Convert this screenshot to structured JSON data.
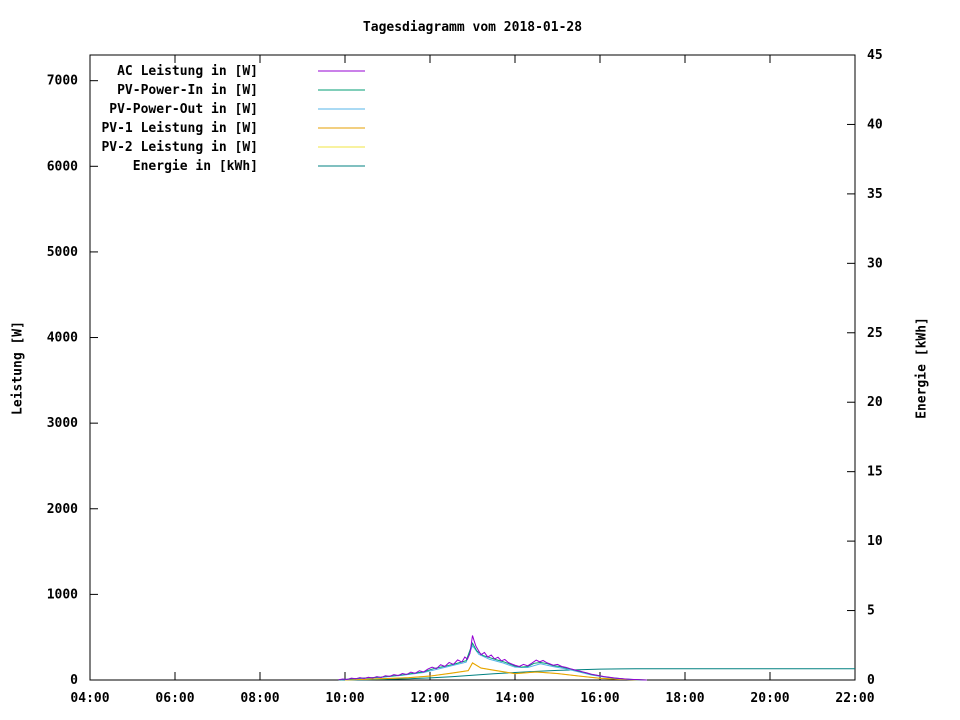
{
  "chart_data": {
    "type": "line",
    "title": "Tagesdiagramm vom 2018-01-28",
    "ylabel": "Leistung [W]",
    "y2label": "Energie [kWh]",
    "grid": false,
    "legend_position": "top-left-inside",
    "xlim": [
      4,
      22
    ],
    "ylim": [
      0,
      7300
    ],
    "y2lim": [
      0,
      45
    ],
    "x_ticks": [
      {
        "v": 4,
        "label": "04:00"
      },
      {
        "v": 6,
        "label": "06:00"
      },
      {
        "v": 8,
        "label": "08:00"
      },
      {
        "v": 10,
        "label": "10:00"
      },
      {
        "v": 12,
        "label": "12:00"
      },
      {
        "v": 14,
        "label": "14:00"
      },
      {
        "v": 16,
        "label": "16:00"
      },
      {
        "v": 18,
        "label": "18:00"
      },
      {
        "v": 20,
        "label": "20:00"
      },
      {
        "v": 22,
        "label": "22:00"
      }
    ],
    "y_ticks": [
      0,
      1000,
      2000,
      3000,
      4000,
      5000,
      6000,
      7000
    ],
    "y2_ticks": [
      0,
      5,
      10,
      15,
      20,
      25,
      30,
      35,
      40,
      45
    ],
    "series": [
      {
        "name": "AC Leistung in [W]",
        "color": "#9400d3",
        "axis": "y1",
        "points": [
          [
            9.85,
            3
          ],
          [
            9.95,
            12
          ],
          [
            10.05,
            6
          ],
          [
            10.15,
            22
          ],
          [
            10.25,
            14
          ],
          [
            10.35,
            28
          ],
          [
            10.45,
            18
          ],
          [
            10.55,
            32
          ],
          [
            10.65,
            24
          ],
          [
            10.75,
            40
          ],
          [
            10.85,
            30
          ],
          [
            10.95,
            50
          ],
          [
            11.05,
            42
          ],
          [
            11.15,
            62
          ],
          [
            11.25,
            52
          ],
          [
            11.35,
            76
          ],
          [
            11.45,
            64
          ],
          [
            11.55,
            92
          ],
          [
            11.65,
            78
          ],
          [
            11.75,
            108
          ],
          [
            11.85,
            94
          ],
          [
            11.95,
            128
          ],
          [
            12.05,
            150
          ],
          [
            12.15,
            132
          ],
          [
            12.25,
            178
          ],
          [
            12.35,
            158
          ],
          [
            12.45,
            205
          ],
          [
            12.55,
            182
          ],
          [
            12.65,
            235
          ],
          [
            12.75,
            210
          ],
          [
            12.82,
            268
          ],
          [
            12.88,
            242
          ],
          [
            12.94,
            310
          ],
          [
            13.0,
            520
          ],
          [
            13.04,
            455
          ],
          [
            13.08,
            395
          ],
          [
            13.14,
            345
          ],
          [
            13.2,
            295
          ],
          [
            13.28,
            322
          ],
          [
            13.36,
            268
          ],
          [
            13.44,
            292
          ],
          [
            13.52,
            246
          ],
          [
            13.6,
            266
          ],
          [
            13.68,
            224
          ],
          [
            13.76,
            240
          ],
          [
            13.84,
            205
          ],
          [
            13.92,
            188
          ],
          [
            14.0,
            172
          ],
          [
            14.1,
            158
          ],
          [
            14.2,
            182
          ],
          [
            14.3,
            166
          ],
          [
            14.4,
            198
          ],
          [
            14.5,
            232
          ],
          [
            14.58,
            212
          ],
          [
            14.66,
            228
          ],
          [
            14.74,
            204
          ],
          [
            14.82,
            188
          ],
          [
            14.9,
            172
          ],
          [
            15.0,
            182
          ],
          [
            15.1,
            158
          ],
          [
            15.2,
            148
          ],
          [
            15.3,
            132
          ],
          [
            15.4,
            118
          ],
          [
            15.5,
            108
          ],
          [
            15.6,
            94
          ],
          [
            15.7,
            82
          ],
          [
            15.8,
            68
          ],
          [
            15.9,
            58
          ],
          [
            16.0,
            48
          ],
          [
            16.1,
            40
          ],
          [
            16.2,
            33
          ],
          [
            16.3,
            26
          ],
          [
            16.4,
            21
          ],
          [
            16.5,
            16
          ],
          [
            16.6,
            12
          ],
          [
            16.7,
            9
          ],
          [
            16.8,
            6
          ],
          [
            16.9,
            4
          ],
          [
            17.0,
            2
          ],
          [
            17.1,
            0
          ]
        ]
      },
      {
        "name": "PV-Power-In in [W]",
        "color": "#009e73",
        "axis": "y1",
        "points": [
          [
            9.85,
            2
          ],
          [
            10.1,
            10
          ],
          [
            10.35,
            20
          ],
          [
            10.6,
            26
          ],
          [
            10.85,
            34
          ],
          [
            11.1,
            46
          ],
          [
            11.35,
            60
          ],
          [
            11.6,
            78
          ],
          [
            11.85,
            95
          ],
          [
            12.1,
            135
          ],
          [
            12.35,
            160
          ],
          [
            12.6,
            190
          ],
          [
            12.85,
            225
          ],
          [
            13.0,
            430
          ],
          [
            13.1,
            340
          ],
          [
            13.25,
            285
          ],
          [
            13.4,
            262
          ],
          [
            13.55,
            238
          ],
          [
            13.7,
            218
          ],
          [
            13.85,
            192
          ],
          [
            14.0,
            162
          ],
          [
            14.15,
            150
          ],
          [
            14.3,
            158
          ],
          [
            14.45,
            195
          ],
          [
            14.6,
            205
          ],
          [
            14.75,
            192
          ],
          [
            14.9,
            168
          ],
          [
            15.05,
            158
          ],
          [
            15.2,
            140
          ],
          [
            15.35,
            124
          ],
          [
            15.5,
            102
          ],
          [
            15.65,
            86
          ],
          [
            15.8,
            64
          ],
          [
            15.95,
            52
          ],
          [
            16.1,
            38
          ],
          [
            16.25,
            28
          ],
          [
            16.4,
            20
          ],
          [
            16.55,
            13
          ],
          [
            16.7,
            8
          ],
          [
            16.85,
            4
          ],
          [
            17.0,
            1
          ],
          [
            17.1,
            0
          ]
        ]
      },
      {
        "name": "PV-Power-Out in [W]",
        "color": "#56b4e9",
        "axis": "y1",
        "points": [
          [
            9.85,
            2
          ],
          [
            10.35,
            18
          ],
          [
            10.85,
            31
          ],
          [
            11.35,
            55
          ],
          [
            11.85,
            88
          ],
          [
            12.35,
            148
          ],
          [
            12.85,
            208
          ],
          [
            13.0,
            400
          ],
          [
            13.15,
            300
          ],
          [
            13.4,
            242
          ],
          [
            13.7,
            202
          ],
          [
            14.0,
            150
          ],
          [
            14.3,
            146
          ],
          [
            14.6,
            190
          ],
          [
            14.9,
            156
          ],
          [
            15.2,
            130
          ],
          [
            15.5,
            95
          ],
          [
            15.8,
            59
          ],
          [
            16.1,
            35
          ],
          [
            16.4,
            18
          ],
          [
            16.7,
            7
          ],
          [
            17.0,
            1
          ],
          [
            17.1,
            0
          ]
        ]
      },
      {
        "name": "PV-1 Leistung in [W]",
        "color": "#e69f00",
        "axis": "y1",
        "points": [
          [
            10.0,
            1
          ],
          [
            10.5,
            9
          ],
          [
            11.0,
            18
          ],
          [
            11.5,
            28
          ],
          [
            12.0,
            46
          ],
          [
            12.5,
            80
          ],
          [
            12.9,
            110
          ],
          [
            13.0,
            200
          ],
          [
            13.2,
            140
          ],
          [
            13.5,
            115
          ],
          [
            14.0,
            74
          ],
          [
            14.5,
            94
          ],
          [
            15.0,
            76
          ],
          [
            15.5,
            47
          ],
          [
            16.0,
            20
          ],
          [
            16.5,
            8
          ],
          [
            17.0,
            1
          ],
          [
            17.1,
            0
          ]
        ]
      },
      {
        "name": "PV-2 Leistung in [W]",
        "color": "#f0e442",
        "axis": "y1",
        "points": [
          [
            10.0,
            1
          ],
          [
            10.5,
            9
          ],
          [
            11.0,
            18
          ],
          [
            11.5,
            27
          ],
          [
            12.0,
            45
          ],
          [
            12.5,
            78
          ],
          [
            12.9,
            108
          ],
          [
            13.0,
            198
          ],
          [
            13.2,
            138
          ],
          [
            13.5,
            113
          ],
          [
            14.0,
            73
          ],
          [
            14.5,
            93
          ],
          [
            15.0,
            75
          ],
          [
            15.5,
            46
          ],
          [
            16.0,
            19
          ],
          [
            16.5,
            7
          ],
          [
            17.0,
            1
          ],
          [
            17.1,
            0
          ]
        ]
      },
      {
        "name": "Energie in [kWh]",
        "color": "#008080",
        "axis": "y2",
        "points": [
          [
            9.9,
            0
          ],
          [
            10.5,
            0.02
          ],
          [
            11.0,
            0.05
          ],
          [
            11.5,
            0.09
          ],
          [
            12.0,
            0.15
          ],
          [
            12.5,
            0.23
          ],
          [
            13.0,
            0.34
          ],
          [
            13.5,
            0.45
          ],
          [
            14.0,
            0.54
          ],
          [
            14.5,
            0.62
          ],
          [
            15.0,
            0.69
          ],
          [
            15.5,
            0.74
          ],
          [
            16.0,
            0.78
          ],
          [
            16.5,
            0.8
          ],
          [
            17.0,
            0.81
          ],
          [
            22.0,
            0.81
          ]
        ]
      }
    ]
  }
}
